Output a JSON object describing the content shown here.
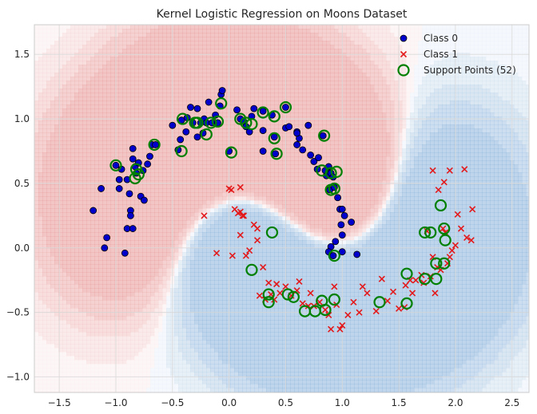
{
  "chart_data": {
    "type": "scatter",
    "title": "Kernel Logistic Regression on Moons Dataset",
    "xlabel": "",
    "ylabel": "",
    "xlim": [
      -1.72,
      2.65
    ],
    "ylim": [
      -1.12,
      1.73
    ],
    "xticks": [
      -1.5,
      -1.0,
      -0.5,
      0.0,
      0.5,
      1.0,
      1.5,
      2.0,
      2.5
    ],
    "yticks": [
      -1.0,
      -0.5,
      0.0,
      0.5,
      1.0,
      1.5
    ],
    "xtick_labels": [
      "−1.5",
      "−1.0",
      "−0.5",
      "0.0",
      "0.5",
      "1.0",
      "1.5",
      "2.0",
      "2.5"
    ],
    "ytick_labels": [
      "−1.0",
      "−0.5",
      "0.0",
      "0.5",
      "1.0",
      "1.5"
    ],
    "grid": true,
    "legend_position": "top-right",
    "legend": [
      {
        "label": "Class 0",
        "marker": "circle",
        "color": "#0000cc"
      },
      {
        "label": "Class 1",
        "marker": "x",
        "color": "#e31a1c"
      },
      {
        "label": "Support Points (52)",
        "marker": "ring",
        "color": "#008000"
      }
    ],
    "background": {
      "type": "decision_contour",
      "positive_color": "#d9534f",
      "negative_color": "#3a7fc1"
    },
    "series": [
      {
        "name": "Class 0",
        "marker": "circle",
        "color": "#0000cc",
        "points": [
          [
            -1.2,
            0.29
          ],
          [
            -1.13,
            0.46
          ],
          [
            -1.1,
            0.0
          ],
          [
            -1.08,
            0.08
          ],
          [
            -1.0,
            0.64
          ],
          [
            -0.97,
            0.53
          ],
          [
            -0.97,
            0.46
          ],
          [
            -0.95,
            0.61
          ],
          [
            -0.92,
            -0.04
          ],
          [
            -0.9,
            0.53
          ],
          [
            -0.9,
            0.15
          ],
          [
            -0.88,
            0.42
          ],
          [
            -0.87,
            0.29
          ],
          [
            -0.87,
            0.25
          ],
          [
            -0.85,
            0.77
          ],
          [
            -0.85,
            0.69
          ],
          [
            -0.85,
            0.15
          ],
          [
            -0.83,
            0.63
          ],
          [
            -0.82,
            0.58
          ],
          [
            -0.8,
            0.66
          ],
          [
            -0.78,
            0.4
          ],
          [
            -0.75,
            0.37
          ],
          [
            -0.76,
            0.6
          ],
          [
            -0.72,
            0.65
          ],
          [
            -0.7,
            0.71
          ],
          [
            -0.68,
            0.8
          ],
          [
            -0.65,
            0.8
          ],
          [
            -0.5,
            0.95
          ],
          [
            -0.45,
            0.76
          ],
          [
            -0.43,
            0.84
          ],
          [
            -0.42,
            0.99
          ],
          [
            -0.38,
            0.9
          ],
          [
            -0.37,
            1.01
          ],
          [
            -0.34,
            1.09
          ],
          [
            -0.32,
            0.97
          ],
          [
            -0.28,
            1.08
          ],
          [
            -0.28,
            0.86
          ],
          [
            -0.25,
            0.97
          ],
          [
            -0.23,
            0.89
          ],
          [
            -0.22,
            1.0
          ],
          [
            -0.2,
            0.97
          ],
          [
            -0.18,
            1.13
          ],
          [
            -0.15,
            0.97
          ],
          [
            -0.12,
            1.03
          ],
          [
            -0.1,
            0.97
          ],
          [
            -0.08,
            1.1
          ],
          [
            -0.07,
            1.19
          ],
          [
            -0.06,
            1.22
          ],
          [
            0.0,
            0.75
          ],
          [
            0.07,
            1.07
          ],
          [
            0.1,
            1.0
          ],
          [
            0.13,
            0.98
          ],
          [
            0.15,
            0.94
          ],
          [
            0.18,
            0.9
          ],
          [
            0.2,
            1.02
          ],
          [
            0.22,
            1.08
          ],
          [
            0.3,
            1.06
          ],
          [
            0.3,
            0.91
          ],
          [
            0.3,
            0.75
          ],
          [
            0.38,
            1.03
          ],
          [
            0.4,
            0.86
          ],
          [
            0.41,
            0.73
          ],
          [
            0.5,
            0.93
          ],
          [
            0.5,
            1.09
          ],
          [
            0.53,
            0.94
          ],
          [
            0.6,
            0.8
          ],
          [
            0.6,
            0.9
          ],
          [
            0.62,
            0.85
          ],
          [
            0.65,
            0.76
          ],
          [
            0.7,
            0.95
          ],
          [
            0.72,
            0.72
          ],
          [
            0.75,
            0.67
          ],
          [
            0.78,
            0.61
          ],
          [
            0.79,
            0.7
          ],
          [
            0.83,
            0.87
          ],
          [
            0.85,
            0.6
          ],
          [
            0.86,
            0.56
          ],
          [
            0.88,
            0.63
          ],
          [
            0.89,
            0.45
          ],
          [
            0.9,
            0.58
          ],
          [
            0.92,
            0.55
          ],
          [
            0.93,
            0.47
          ],
          [
            0.96,
            0.39
          ],
          [
            0.98,
            0.3
          ],
          [
            0.99,
            0.18
          ],
          [
            1.0,
            0.1
          ],
          [
            1.0,
            0.3
          ],
          [
            1.02,
            0.25
          ],
          [
            0.94,
            0.05
          ],
          [
            0.9,
            0.01
          ],
          [
            0.88,
            -0.03
          ],
          [
            0.92,
            -0.06
          ],
          [
            1.0,
            -0.03
          ],
          [
            1.08,
            0.2
          ],
          [
            1.13,
            -0.05
          ],
          [
            0.6,
            0.89
          ]
        ]
      },
      {
        "name": "Class 1",
        "marker": "x",
        "color": "#e31a1c",
        "points": [
          [
            -0.22,
            0.25
          ],
          [
            -0.11,
            -0.04
          ],
          [
            0.0,
            0.46
          ],
          [
            0.02,
            0.45
          ],
          [
            0.03,
            -0.06
          ],
          [
            0.05,
            0.3
          ],
          [
            0.08,
            0.27
          ],
          [
            0.1,
            0.47
          ],
          [
            0.1,
            0.1
          ],
          [
            0.1,
            0.28
          ],
          [
            0.12,
            0.25
          ],
          [
            0.13,
            0.25
          ],
          [
            0.15,
            -0.06
          ],
          [
            0.18,
            -0.02
          ],
          [
            0.22,
            0.18
          ],
          [
            0.25,
            0.15
          ],
          [
            0.25,
            0.06
          ],
          [
            0.27,
            -0.37
          ],
          [
            0.3,
            -0.15
          ],
          [
            0.32,
            -0.4
          ],
          [
            0.35,
            -0.27
          ],
          [
            0.37,
            -0.36
          ],
          [
            0.4,
            -0.4
          ],
          [
            0.42,
            -0.28
          ],
          [
            0.45,
            -0.35
          ],
          [
            0.5,
            -0.3
          ],
          [
            0.55,
            -0.37
          ],
          [
            0.6,
            -0.33
          ],
          [
            0.62,
            -0.26
          ],
          [
            0.65,
            -0.43
          ],
          [
            0.7,
            -0.45
          ],
          [
            0.72,
            -0.35
          ],
          [
            0.75,
            -0.45
          ],
          [
            0.8,
            -0.42
          ],
          [
            0.85,
            -0.48
          ],
          [
            0.88,
            -0.52
          ],
          [
            0.9,
            -0.63
          ],
          [
            0.93,
            -0.3
          ],
          [
            0.95,
            -0.44
          ],
          [
            0.98,
            -0.63
          ],
          [
            1.0,
            -0.6
          ],
          [
            1.05,
            -0.52
          ],
          [
            1.1,
            -0.42
          ],
          [
            1.15,
            -0.5
          ],
          [
            1.18,
            -0.3
          ],
          [
            1.22,
            -0.35
          ],
          [
            1.3,
            -0.49
          ],
          [
            1.35,
            -0.24
          ],
          [
            1.4,
            -0.41
          ],
          [
            1.45,
            -0.34
          ],
          [
            1.5,
            -0.47
          ],
          [
            1.55,
            -0.46
          ],
          [
            1.56,
            -0.29
          ],
          [
            1.6,
            -0.25
          ],
          [
            1.62,
            -0.35
          ],
          [
            1.65,
            -0.25
          ],
          [
            1.7,
            -0.21
          ],
          [
            1.72,
            -0.27
          ],
          [
            1.75,
            0.13
          ],
          [
            1.78,
            -0.22
          ],
          [
            1.8,
            -0.07
          ],
          [
            1.82,
            -0.35
          ],
          [
            1.84,
            -0.15
          ],
          [
            1.87,
            -0.17
          ],
          [
            1.89,
            0.15
          ],
          [
            1.91,
            0.12
          ],
          [
            1.93,
            -0.12
          ],
          [
            1.95,
            -0.07
          ],
          [
            1.97,
            -0.02
          ],
          [
            2.0,
            0.02
          ],
          [
            2.02,
            0.26
          ],
          [
            2.05,
            0.15
          ],
          [
            2.1,
            0.08
          ],
          [
            2.14,
            0.06
          ],
          [
            2.15,
            0.3
          ],
          [
            1.8,
            0.6
          ],
          [
            1.85,
            0.45
          ],
          [
            1.9,
            0.51
          ],
          [
            1.95,
            0.6
          ],
          [
            2.08,
            0.61
          ]
        ]
      },
      {
        "name": "Support Points (52)",
        "marker": "ring",
        "color": "#008000",
        "points": [
          [
            -1.0,
            0.64
          ],
          [
            -0.82,
            0.61
          ],
          [
            -0.8,
            0.57
          ],
          [
            -0.83,
            0.54
          ],
          [
            -0.66,
            0.8
          ],
          [
            -0.42,
            0.75
          ],
          [
            -0.41,
            1.0
          ],
          [
            -0.3,
            0.97
          ],
          [
            -0.28,
            0.97
          ],
          [
            -0.2,
            0.88
          ],
          [
            -0.16,
            0.97
          ],
          [
            -0.1,
            0.98
          ],
          [
            -0.07,
            1.12
          ],
          [
            0.02,
            0.74
          ],
          [
            0.1,
            1.0
          ],
          [
            0.15,
            0.97
          ],
          [
            0.2,
            0.96
          ],
          [
            0.3,
            1.05
          ],
          [
            0.4,
            1.02
          ],
          [
            0.4,
            0.85
          ],
          [
            0.42,
            0.73
          ],
          [
            0.5,
            1.09
          ],
          [
            0.84,
            0.87
          ],
          [
            0.82,
            0.6
          ],
          [
            0.9,
            0.58
          ],
          [
            0.95,
            0.59
          ],
          [
            0.9,
            0.45
          ],
          [
            0.93,
            0.46
          ],
          [
            0.93,
            -0.06
          ],
          [
            0.38,
            0.12
          ],
          [
            0.2,
            -0.17
          ],
          [
            0.35,
            -0.36
          ],
          [
            0.35,
            -0.42
          ],
          [
            0.52,
            -0.36
          ],
          [
            0.57,
            -0.38
          ],
          [
            0.67,
            -0.49
          ],
          [
            0.76,
            -0.49
          ],
          [
            0.82,
            -0.41
          ],
          [
            0.85,
            -0.48
          ],
          [
            0.93,
            -0.4
          ],
          [
            1.33,
            -0.42
          ],
          [
            1.57,
            -0.43
          ],
          [
            1.57,
            -0.2
          ],
          [
            1.73,
            -0.24
          ],
          [
            1.73,
            0.12
          ],
          [
            1.78,
            0.12
          ],
          [
            1.83,
            -0.24
          ],
          [
            1.83,
            -0.12
          ],
          [
            1.87,
            0.33
          ],
          [
            1.9,
            0.15
          ],
          [
            1.9,
            -0.12
          ],
          [
            1.91,
            0.06
          ]
        ]
      }
    ]
  }
}
